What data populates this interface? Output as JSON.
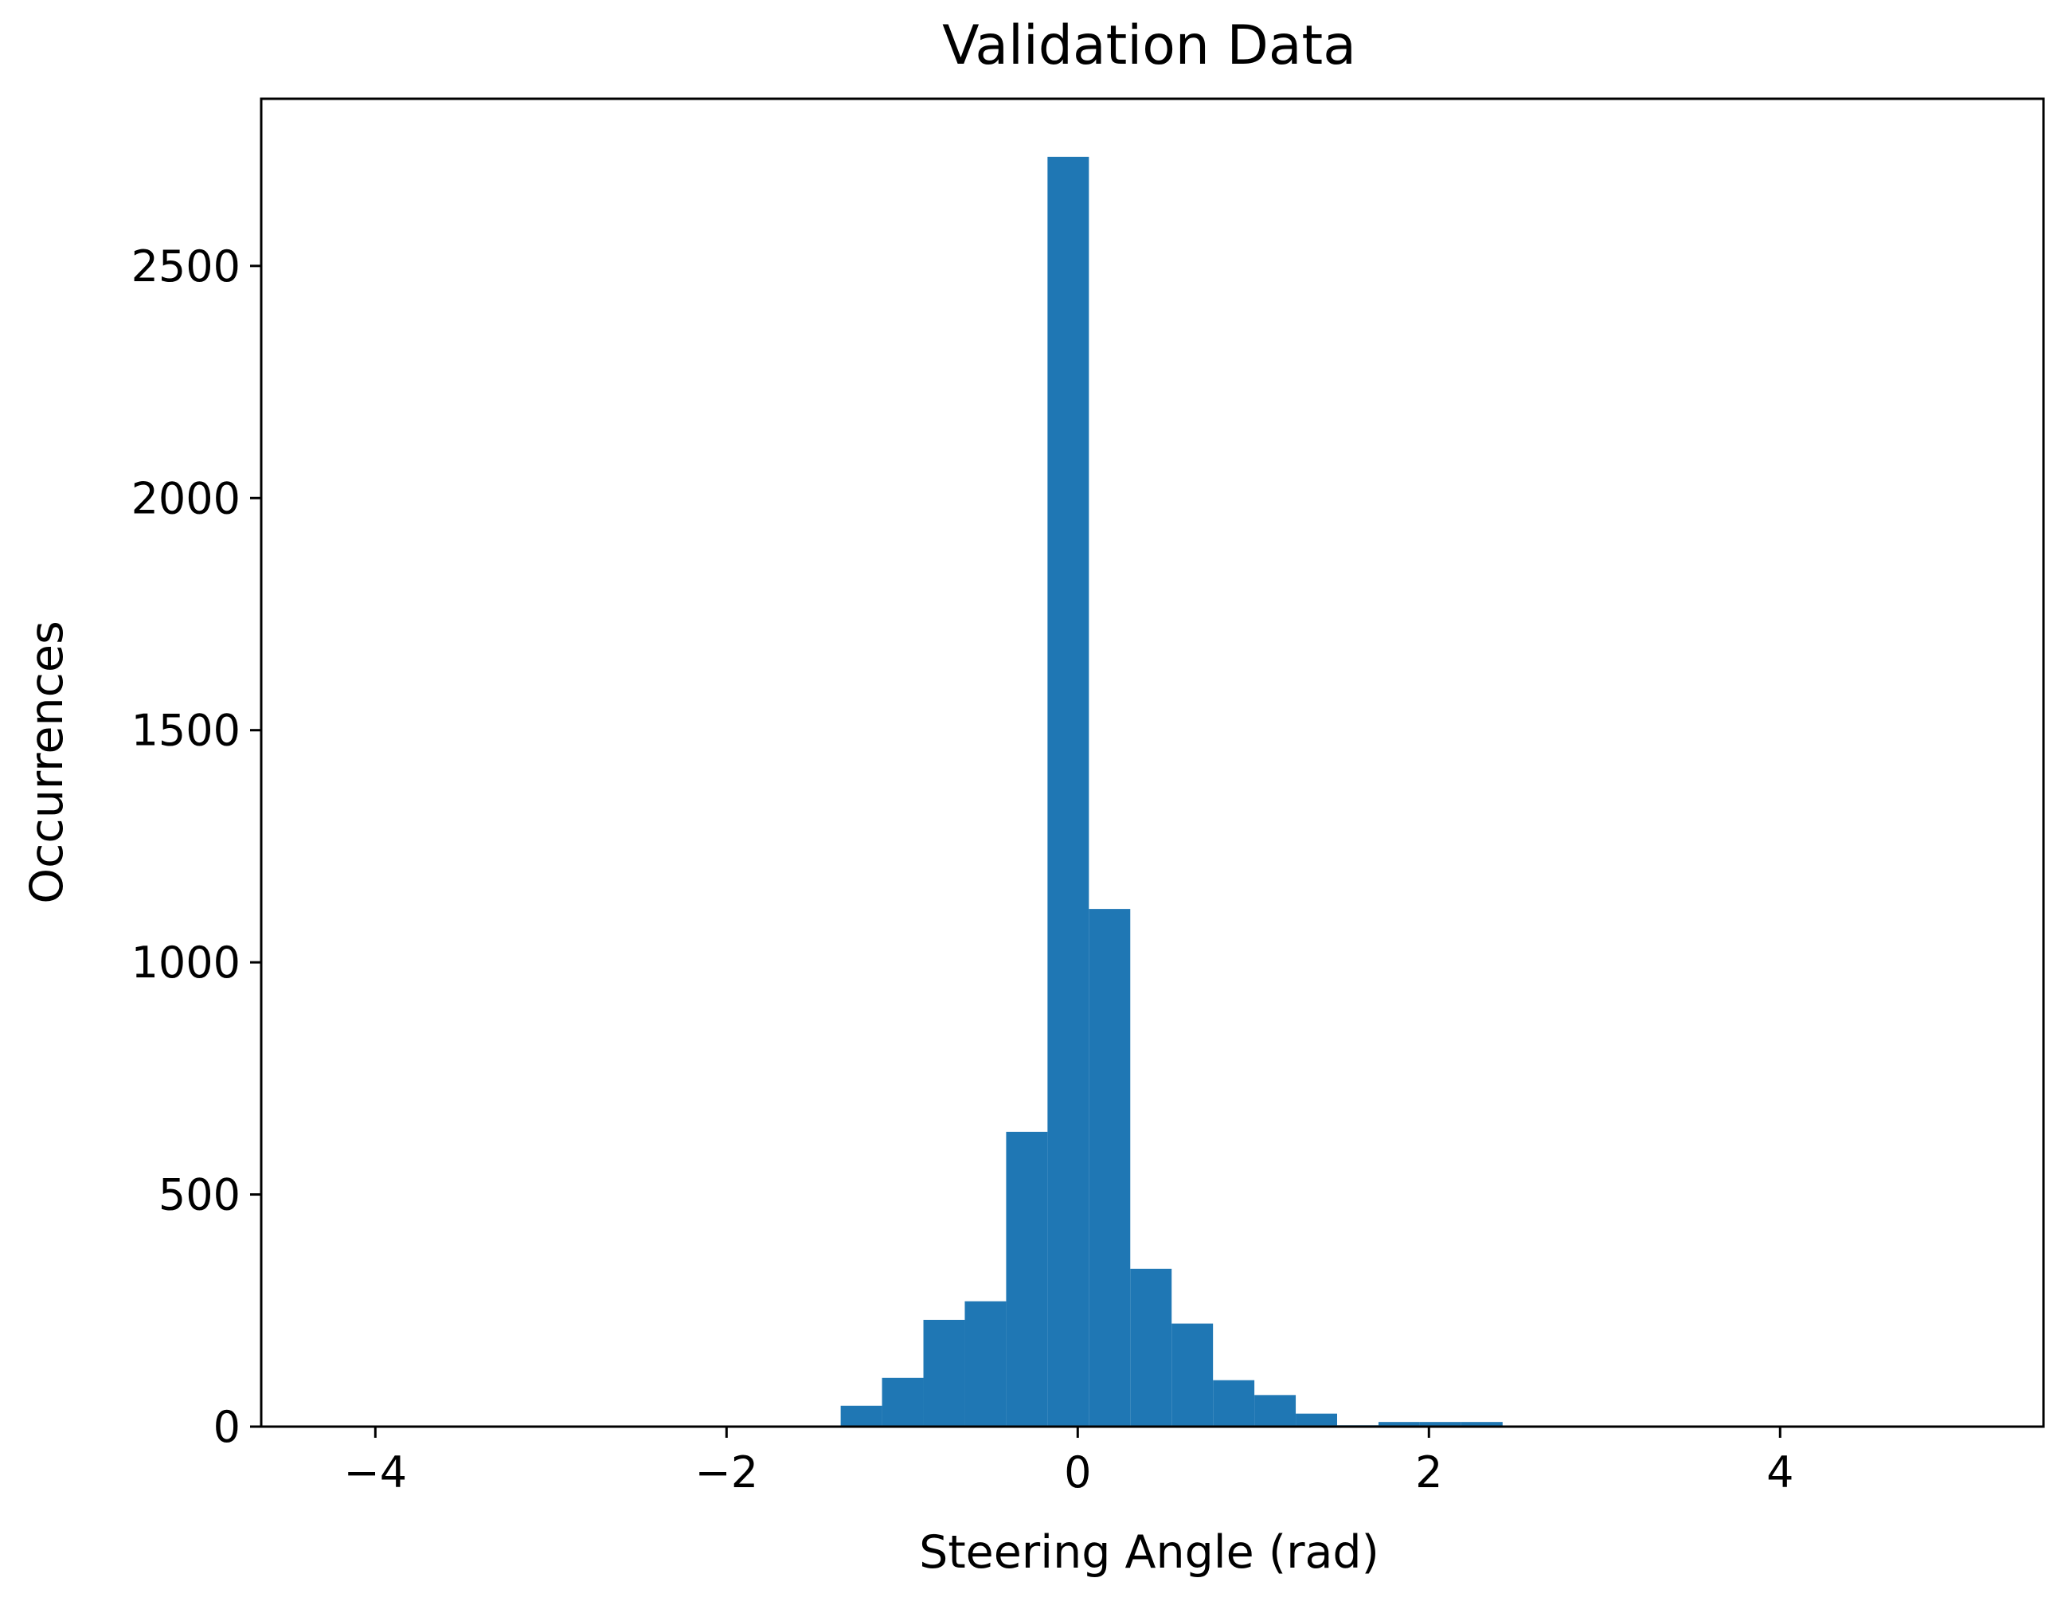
{
  "chart_data": {
    "type": "bar",
    "title": "Validation Data",
    "xlabel": "Steering Angle (rad)",
    "ylabel": "Occurrences",
    "xlim": [
      -4.65,
      5.5
    ],
    "ylim": [
      0,
      2860
    ],
    "xticks": [
      {
        "value": -4,
        "label": "−4"
      },
      {
        "value": -2,
        "label": "−2"
      },
      {
        "value": 0,
        "label": "0"
      },
      {
        "value": 2,
        "label": "2"
      },
      {
        "value": 4,
        "label": "4"
      }
    ],
    "yticks": [
      {
        "value": 0,
        "label": "0"
      },
      {
        "value": 500,
        "label": "500"
      },
      {
        "value": 1000,
        "label": "1000"
      },
      {
        "value": 1500,
        "label": "1500"
      },
      {
        "value": 2000,
        "label": "2000"
      },
      {
        "value": 2500,
        "label": "2500"
      }
    ],
    "grid": false,
    "bin_width": 0.2356,
    "bins": [
      {
        "x0": -1.35,
        "value": 45
      },
      {
        "x0": -1.1144,
        "value": 105
      },
      {
        "x0": -0.8788,
        "value": 230
      },
      {
        "x0": -0.6432,
        "value": 270
      },
      {
        "x0": -0.4076,
        "value": 635
      },
      {
        "x0": -0.172,
        "value": 2735
      },
      {
        "x0": 0.0636,
        "value": 1115
      },
      {
        "x0": 0.2992,
        "value": 340
      },
      {
        "x0": 0.5348,
        "value": 222
      },
      {
        "x0": 0.7704,
        "value": 100
      },
      {
        "x0": 1.006,
        "value": 68
      },
      {
        "x0": 1.2416,
        "value": 28
      },
      {
        "x0": 1.4772,
        "value": 3
      },
      {
        "x0": 1.7128,
        "value": 10
      },
      {
        "x0": 1.9484,
        "value": 10
      },
      {
        "x0": 2.184,
        "value": 10
      }
    ],
    "colors": {
      "bar": "#1f77b4"
    }
  }
}
